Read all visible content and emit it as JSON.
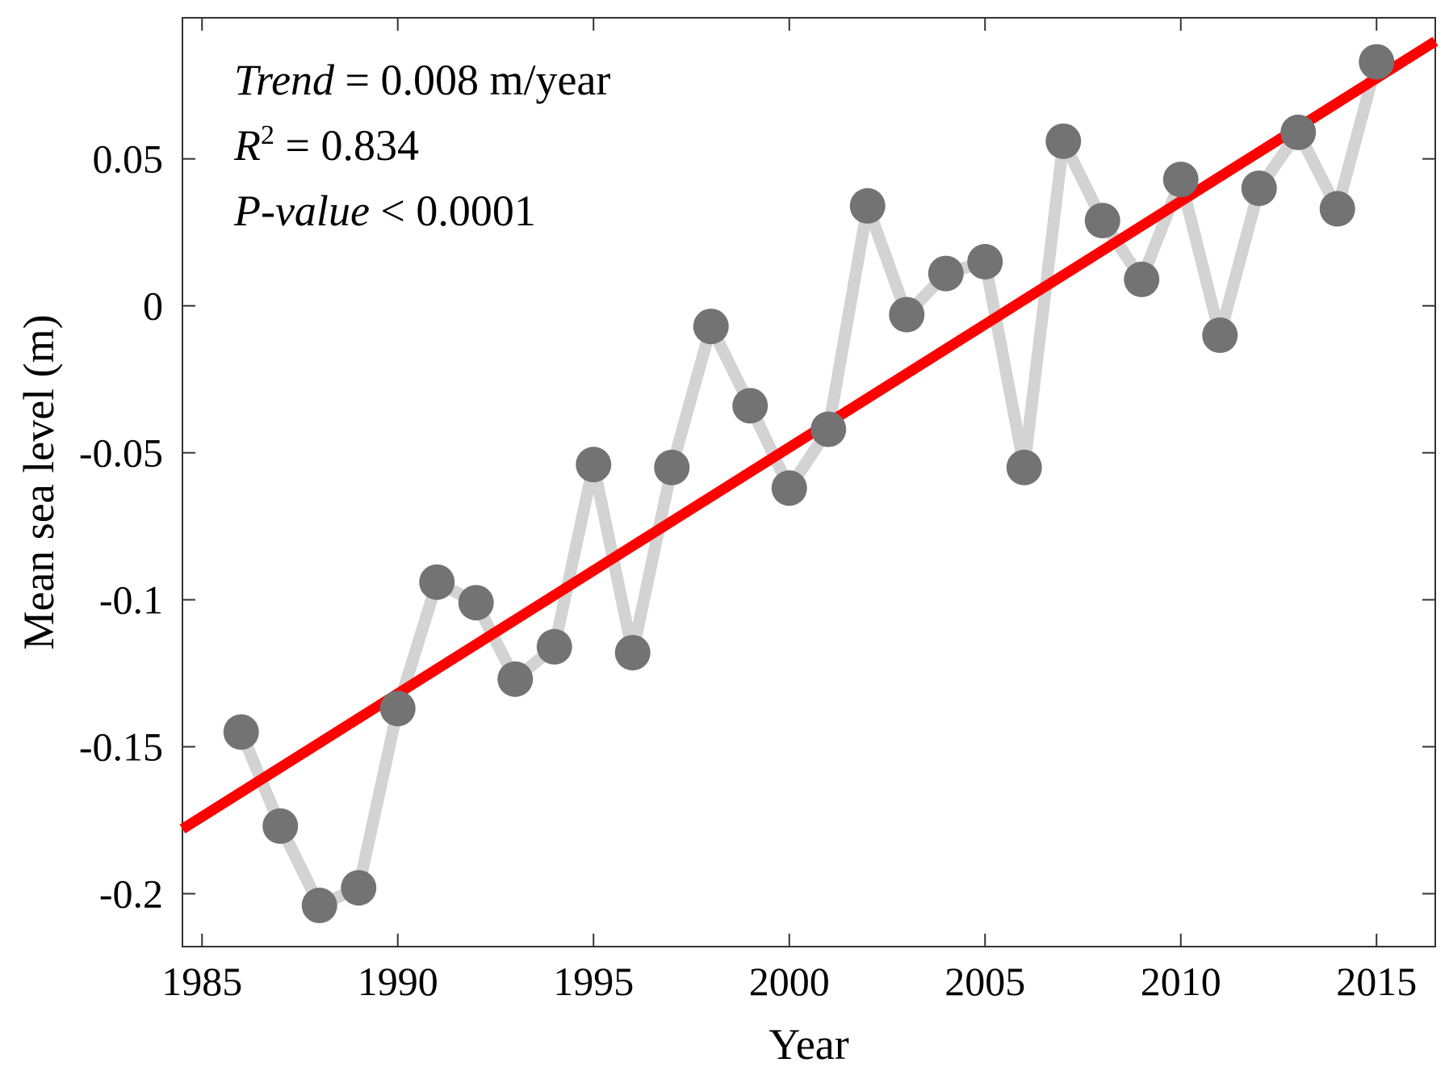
{
  "chart_data": {
    "type": "line",
    "title": "",
    "xlabel": "Year",
    "ylabel": "Mean sea level (m)",
    "xlim": [
      1984.5,
      2016.5
    ],
    "ylim": [
      -0.218,
      0.098
    ],
    "xticks": [
      1985,
      1990,
      1995,
      2000,
      2005,
      2010,
      2015
    ],
    "xtick_labels": [
      "1985",
      "1990",
      "1995",
      "2000",
      "2005",
      "2010",
      "2015"
    ],
    "yticks": [
      0.05,
      0,
      -0.05,
      -0.1,
      -0.15,
      -0.2
    ],
    "ytick_labels": [
      "0.05",
      "0",
      "-0.05",
      "-0.1",
      "-0.15",
      "-0.2"
    ],
    "grid": false,
    "series": [
      {
        "name": "Mean sea level",
        "x": [
          1986,
          1987,
          1988,
          1989,
          1990,
          1991,
          1992,
          1993,
          1994,
          1995,
          1996,
          1997,
          1998,
          1999,
          2000,
          2001,
          2002,
          2003,
          2004,
          2005,
          2006,
          2007,
          2008,
          2009,
          2010,
          2011,
          2012,
          2013,
          2014,
          2015
        ],
        "values": [
          -0.145,
          -0.177,
          -0.204,
          -0.198,
          -0.137,
          -0.094,
          -0.101,
          -0.127,
          -0.116,
          -0.054,
          -0.118,
          -0.055,
          -0.007,
          -0.034,
          -0.062,
          -0.042,
          0.034,
          -0.003,
          0.011,
          0.015,
          -0.055,
          0.056,
          0.029,
          0.009,
          0.043,
          -0.01,
          0.04,
          0.059,
          0.033,
          0.083
        ],
        "line_color": "#d3d3d3",
        "marker_color": "#737373"
      },
      {
        "name": "Linear trend",
        "x": [
          1984.5,
          2016.5
        ],
        "values": [
          -0.178,
          0.09
        ],
        "line_color": "#ff0000"
      }
    ],
    "annotations": [
      {
        "label": "Trend",
        "sup": "",
        "text": " = 0.008 m/year"
      },
      {
        "label": "R",
        "sup": "2",
        "text": " = 0.834"
      },
      {
        "label": "P-value",
        "sup": "",
        "text": " < 0.0001"
      }
    ]
  }
}
